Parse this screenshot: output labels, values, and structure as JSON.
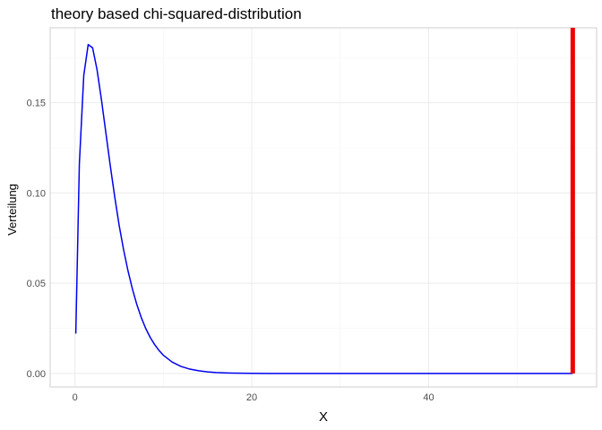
{
  "chart_data": {
    "type": "line",
    "title": "theory based chi-squared-distribution",
    "xlabel": "X",
    "ylabel": "Verteilung",
    "xlim": [
      -2.8,
      59.0
    ],
    "ylim": [
      -0.0075,
      0.1915
    ],
    "x_ticks": [
      0,
      20,
      40
    ],
    "x_tick_labels": [
      "0",
      "20",
      "40"
    ],
    "y_ticks": [
      0.0,
      0.05,
      0.1,
      0.15
    ],
    "y_tick_labels": [
      "0.00",
      "0.05",
      "0.10",
      "0.15"
    ],
    "grid": true,
    "legend": "none",
    "series": [
      {
        "color": "#0000ee",
        "x": [
          0.1,
          0.5,
          1,
          1.5,
          2,
          2.5,
          3,
          3.5,
          4,
          4.5,
          5,
          5.5,
          6,
          6.5,
          7,
          7.5,
          8,
          8.5,
          9,
          9.5,
          10,
          11,
          12,
          13,
          14,
          15,
          16,
          17,
          18,
          19,
          20,
          22,
          25,
          30,
          35,
          40,
          45,
          50,
          56.3
        ],
        "y": [
          0.0221,
          0.1159,
          0.1651,
          0.1822,
          0.1804,
          0.1683,
          0.1516,
          0.1333,
          0.115,
          0.0979,
          0.0821,
          0.0686,
          0.0569,
          0.0468,
          0.0382,
          0.031,
          0.025,
          0.0201,
          0.0161,
          0.0128,
          0.0101,
          0.0063,
          0.0039,
          0.0024,
          0.0015,
          0.0009,
          0.00053,
          0.00031,
          0.00018,
          0.00011,
          6e-05,
          2e-05,
          0.0,
          0.0,
          0.0,
          0.0,
          0.0,
          0.0,
          0.0
        ]
      }
    ],
    "vline": {
      "x": 56.3,
      "color": "#ee0000"
    }
  }
}
